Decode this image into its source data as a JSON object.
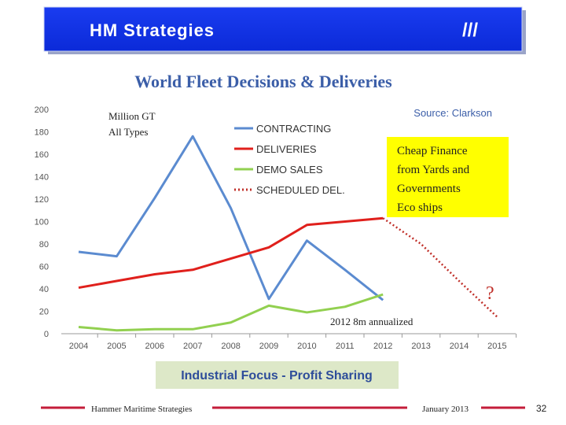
{
  "header": {
    "title": "HM Strategies",
    "mark": "///"
  },
  "chart_data": {
    "type": "line",
    "title": "World Fleet Decisions & Deliveries",
    "unit_label": "Million GT",
    "subtitle": "All Types",
    "source": "Source: Clarkson",
    "annotations": [
      "Cheap Finance",
      "from Yards and",
      "Governments",
      "Eco ships",
      "?",
      "2012 8m annualized"
    ],
    "categories": [
      "2004",
      "2005",
      "2006",
      "2007",
      "2008",
      "2009",
      "2010",
      "2011",
      "2012",
      "2013",
      "2014",
      "2015"
    ],
    "series": [
      {
        "name": "CONTRACTING",
        "color": "#5b8bd0",
        "style": "solid",
        "values": [
          73,
          69,
          121,
          176,
          112,
          31,
          83,
          57,
          30,
          null,
          null,
          null
        ]
      },
      {
        "name": "DELIVERIES",
        "color": "#e0201c",
        "style": "solid",
        "values": [
          41,
          47,
          53,
          57,
          67,
          77,
          97,
          100,
          103,
          null,
          null,
          null
        ]
      },
      {
        "name": "DEMO SALES",
        "color": "#92d050",
        "style": "solid",
        "values": [
          6,
          3,
          4,
          4,
          10,
          25,
          19,
          24,
          35,
          null,
          null,
          null
        ]
      },
      {
        "name": "SCHEDULED DEL.",
        "color": "#c0302a",
        "style": "dotted",
        "values": [
          null,
          null,
          null,
          null,
          null,
          null,
          null,
          null,
          103,
          80,
          47,
          15
        ]
      }
    ],
    "ylim": [
      0,
      200
    ],
    "yticks": [
      0,
      20,
      40,
      60,
      80,
      100,
      120,
      140,
      160,
      180,
      200
    ],
    "grid": false
  },
  "banner": "Industrial Focus - Profit Sharing",
  "footer": {
    "company": "Hammer Maritime Strategies",
    "date": "January 2013",
    "page": "32"
  }
}
